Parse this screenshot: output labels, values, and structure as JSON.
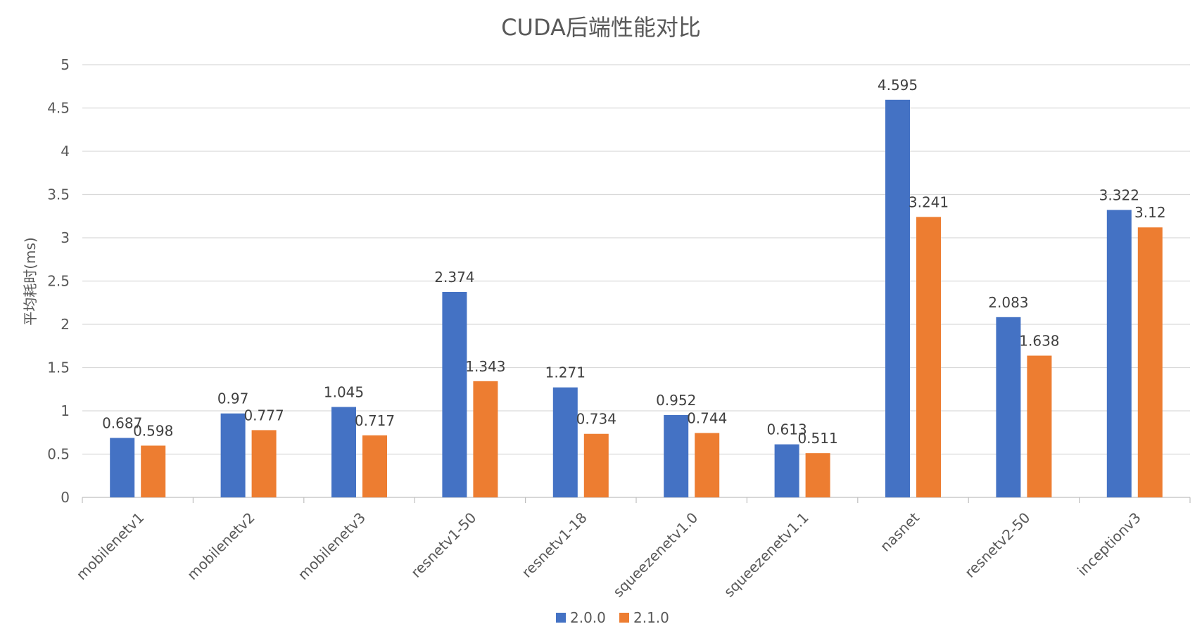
{
  "chart_data": {
    "type": "bar",
    "title": "CUDA后端性能对比",
    "xlabel": "",
    "ylabel": "平均耗时(ms)",
    "ylim": [
      0,
      5
    ],
    "yticks": [
      "0",
      "0.5",
      "1",
      "1.5",
      "2",
      "2.5",
      "3",
      "3.5",
      "4",
      "4.5",
      "5"
    ],
    "grid": true,
    "legend_position": "bottom",
    "categories": [
      "mobilenetv1",
      "mobilenetv2",
      "mobilenetv3",
      "resnetv1-50",
      "resnetv1-18",
      "squeezenetv1.0",
      "squeezenetv1.1",
      "nasnet",
      "resnetv2-50",
      "inceptionv3"
    ],
    "series": [
      {
        "name": "2.0.0",
        "color": "#4472C4",
        "values": [
          0.687,
          0.97,
          1.045,
          2.374,
          1.271,
          0.952,
          0.613,
          4.595,
          2.083,
          3.322
        ],
        "labels": [
          "0.687",
          "0.97",
          "1.045",
          "2.374",
          "1.271",
          "0.952",
          "0.613",
          "4.595",
          "2.083",
          "3.322"
        ]
      },
      {
        "name": "2.1.0",
        "color": "#ED7D31",
        "values": [
          0.598,
          0.777,
          0.717,
          1.343,
          0.734,
          0.744,
          0.511,
          3.241,
          1.638,
          3.12
        ],
        "labels": [
          "0.598",
          "0.777",
          "0.717",
          "1.343",
          "0.734",
          "0.744",
          "0.511",
          "3.241",
          "1.638",
          "3.12"
        ]
      }
    ]
  }
}
